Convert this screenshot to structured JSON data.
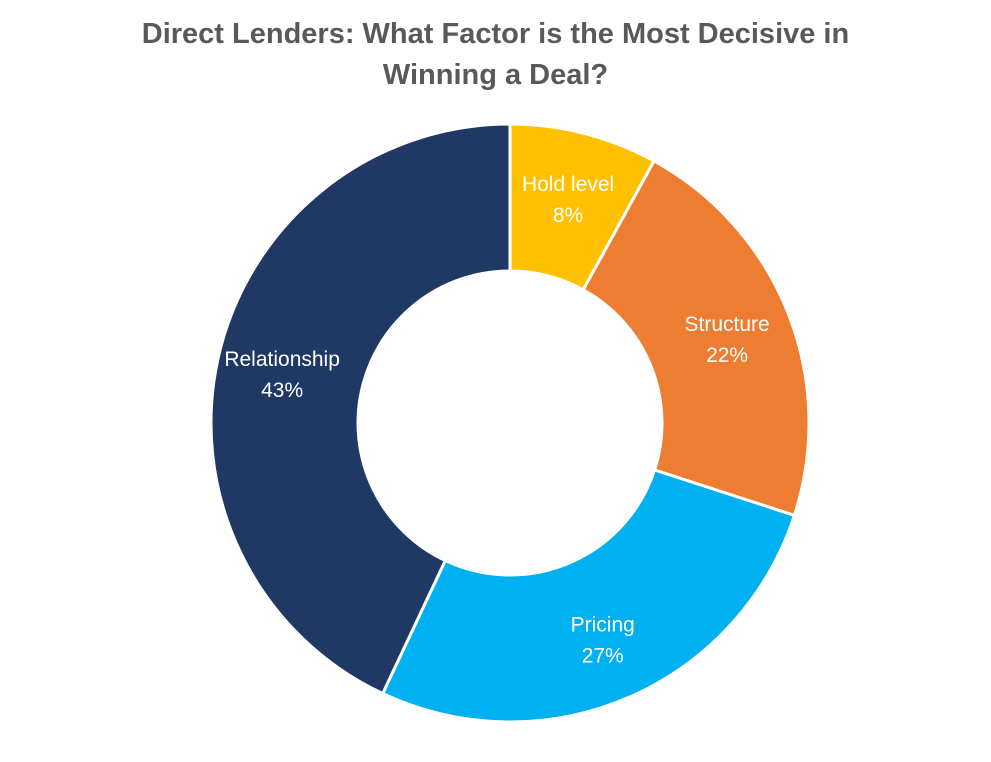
{
  "title": {
    "line1": "Direct Lenders: What Factor is the Most Decisive in",
    "line2": "Winning a Deal?"
  },
  "chart_data": {
    "type": "pie",
    "title": "Direct Lenders: What Factor is the Most Decisive in Winning a Deal?",
    "donut": true,
    "start": "12 o'clock",
    "direction": "clockwise",
    "slices": [
      {
        "label": "Hold level",
        "value": 8,
        "value_label": "8%",
        "color": "#ffc000"
      },
      {
        "label": "Structure",
        "value": 22,
        "value_label": "22%",
        "color": "#ed7d31"
      },
      {
        "label": "Pricing",
        "value": 27,
        "value_label": "27%",
        "color": "#00b0f0"
      },
      {
        "label": "Relationship",
        "value": 43,
        "value_label": "43%",
        "color": "#203864"
      }
    ]
  }
}
